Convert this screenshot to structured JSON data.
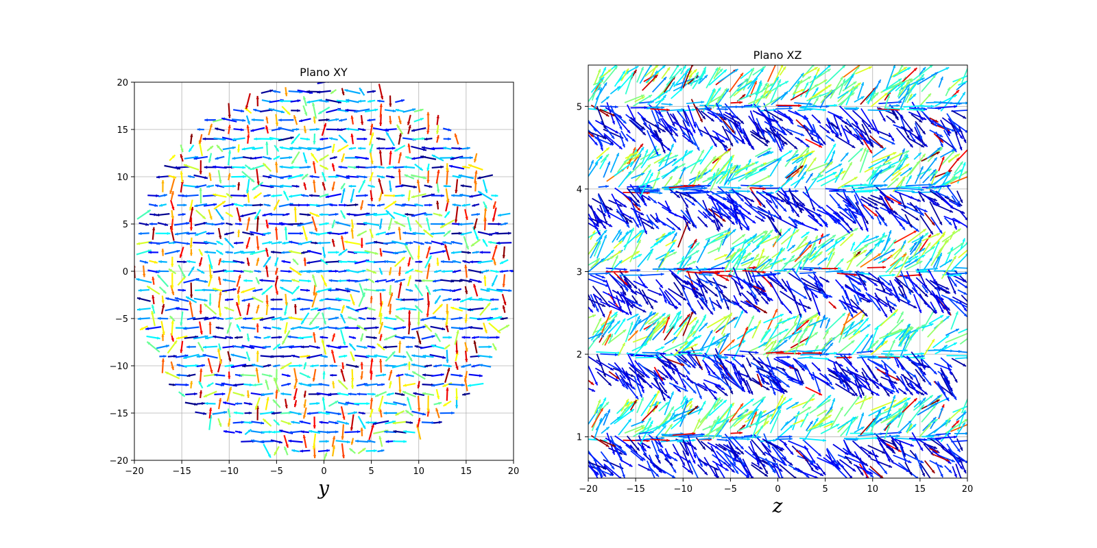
{
  "chart_data": [
    {
      "type": "quiver",
      "title": "Plano XY",
      "xlabel": "y",
      "ylabel": "",
      "xlim": [
        -20,
        20
      ],
      "ylim": [
        -20,
        20
      ],
      "xticks": [
        -20,
        -15,
        -10,
        -5,
        0,
        5,
        10,
        15,
        20
      ],
      "yticks": [
        -20,
        -15,
        -10,
        -5,
        0,
        5,
        10,
        15,
        20
      ],
      "xtick_labels": [
        "−20",
        "−15",
        "−10",
        "−5",
        "0",
        "5",
        "10",
        "15",
        "20"
      ],
      "ytick_labels": [
        "−20",
        "−15",
        "−10",
        "−5",
        "0",
        "5",
        "10",
        "15",
        "20"
      ],
      "grid": true,
      "region": "disk",
      "region_radius": 20,
      "grid_spacing": 1,
      "colormap": "jet"
    },
    {
      "type": "quiver",
      "title": "Plano XZ",
      "xlabel": "z",
      "ylabel": "",
      "xlim": [
        -20,
        20
      ],
      "ylim": [
        0.5,
        5.5
      ],
      "xticks": [
        -20,
        -15,
        -10,
        -5,
        0,
        5,
        10,
        15,
        20
      ],
      "yticks": [
        1,
        2,
        3,
        4,
        5
      ],
      "xtick_labels": [
        "−20",
        "−15",
        "−10",
        "−5",
        "0",
        "5",
        "10",
        "15",
        "20"
      ],
      "ytick_labels": [
        "1",
        "2",
        "3",
        "4",
        "5"
      ],
      "grid": true,
      "bands_center": [
        1,
        2,
        3,
        4,
        5
      ],
      "band_half_width": 0.45,
      "colormap": "jet"
    }
  ]
}
